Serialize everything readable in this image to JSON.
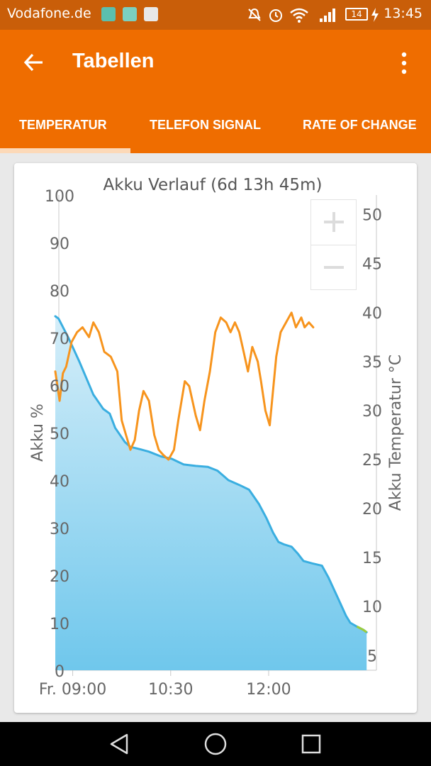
{
  "status_bar": {
    "carrier": "Vodafone.de",
    "battery_level": "14",
    "time": "13:45",
    "icons": [
      "download-icon",
      "app-icon",
      "play-store-icon",
      "mute-icon",
      "alarm-icon",
      "wifi-icon",
      "signal-icon",
      "battery-icon",
      "charging-icon"
    ]
  },
  "app_bar": {
    "title": "Tabellen",
    "back_icon": "arrow-back-icon",
    "menu_icon": "more-vert-icon",
    "color": "#ef6d00"
  },
  "tabs": [
    {
      "label": "TEMPERATUR",
      "selected": true
    },
    {
      "label": "TELEFON SIGNAL",
      "selected": false
    },
    {
      "label": "RATE OF CHANGE",
      "selected": false
    }
  ],
  "zoom_controls": {
    "plus": "+",
    "minus": "−"
  },
  "nav_bar": {
    "icons": [
      "back-triangle-icon",
      "home-circle-icon",
      "recents-square-icon"
    ]
  },
  "chart_data": {
    "type": "area",
    "title": "Akku Verlauf (6d 13h 45m)",
    "ylabel": "Akku %",
    "y2label": "Akku Temperatur °C",
    "ylim": [
      0,
      100
    ],
    "y2lim": [
      3.5,
      52
    ],
    "yticks": [
      0,
      10,
      20,
      30,
      40,
      50,
      60,
      70,
      80,
      90,
      100
    ],
    "y2ticks": [
      5,
      10,
      15,
      20,
      25,
      30,
      35,
      40,
      45,
      50
    ],
    "xlim": [
      -7,
      288
    ],
    "xticks": [
      {
        "label": "Fr. 09:00",
        "t": 9
      },
      {
        "label": "10:30",
        "t": 99
      },
      {
        "label": "12:00",
        "t": 189
      }
    ],
    "grid": false,
    "series": [
      {
        "name": "Akku %",
        "axis": "left",
        "color": "#3aaee0",
        "fill": "#8fd3ef",
        "points": [
          [
            -7,
            74.5
          ],
          [
            -4,
            74
          ],
          [
            5,
            70
          ],
          [
            15,
            65
          ],
          [
            28,
            58
          ],
          [
            34,
            56
          ],
          [
            37,
            55
          ],
          [
            43,
            54
          ],
          [
            48,
            51
          ],
          [
            57,
            48
          ],
          [
            62,
            47
          ],
          [
            71,
            46.5
          ],
          [
            79,
            46
          ],
          [
            90,
            45
          ],
          [
            100,
            44.5
          ],
          [
            111,
            43.3
          ],
          [
            122,
            43
          ],
          [
            133,
            42.8
          ],
          [
            142,
            42
          ],
          [
            147,
            41
          ],
          [
            152,
            40
          ],
          [
            162,
            39
          ],
          [
            171,
            38
          ],
          [
            180,
            35
          ],
          [
            187,
            32
          ],
          [
            193,
            29
          ],
          [
            198,
            27
          ],
          [
            203,
            26.5
          ],
          [
            210,
            26
          ],
          [
            216,
            24.5
          ],
          [
            221,
            23
          ],
          [
            229,
            22.5
          ],
          [
            238,
            22
          ],
          [
            244,
            19.5
          ],
          [
            253,
            15
          ],
          [
            260,
            11.5
          ],
          [
            264,
            10
          ],
          [
            270,
            9.2
          ],
          [
            276,
            8.5
          ],
          [
            279,
            8
          ]
        ]
      },
      {
        "name": "Akku Temperatur °C",
        "axis": "right",
        "color": "#f7941d",
        "points": [
          [
            -7,
            34
          ],
          [
            -3,
            31
          ],
          [
            0,
            33.8
          ],
          [
            3,
            34.5
          ],
          [
            8,
            37
          ],
          [
            13,
            38
          ],
          [
            18,
            38.5
          ],
          [
            24,
            37.5
          ],
          [
            28,
            39
          ],
          [
            33,
            38
          ],
          [
            38,
            36
          ],
          [
            44,
            35.5
          ],
          [
            50,
            34
          ],
          [
            54,
            29
          ],
          [
            58,
            27.5
          ],
          [
            62,
            26
          ],
          [
            66,
            27
          ],
          [
            70,
            30
          ],
          [
            74,
            32
          ],
          [
            79,
            31
          ],
          [
            84,
            27.5
          ],
          [
            88,
            26
          ],
          [
            92,
            25.5
          ],
          [
            97,
            25
          ],
          [
            102,
            26
          ],
          [
            106,
            29
          ],
          [
            112,
            33
          ],
          [
            116,
            32.5
          ],
          [
            122,
            29.5
          ],
          [
            126,
            28
          ],
          [
            130,
            31
          ],
          [
            135,
            34
          ],
          [
            140,
            38
          ],
          [
            145,
            39.5
          ],
          [
            150,
            39
          ],
          [
            154,
            38
          ],
          [
            158,
            39
          ],
          [
            162,
            38
          ],
          [
            166,
            36
          ],
          [
            170,
            34
          ],
          [
            174,
            36.5
          ],
          [
            179,
            35
          ],
          [
            182,
            33
          ],
          [
            186,
            30
          ],
          [
            190,
            28.5
          ],
          [
            196,
            35.5
          ],
          [
            200,
            38
          ],
          [
            205,
            39
          ],
          [
            210,
            40
          ],
          [
            214,
            38.5
          ],
          [
            219,
            39.5
          ],
          [
            222,
            38.5
          ],
          [
            226,
            39
          ],
          [
            230,
            38.5
          ]
        ]
      }
    ]
  }
}
